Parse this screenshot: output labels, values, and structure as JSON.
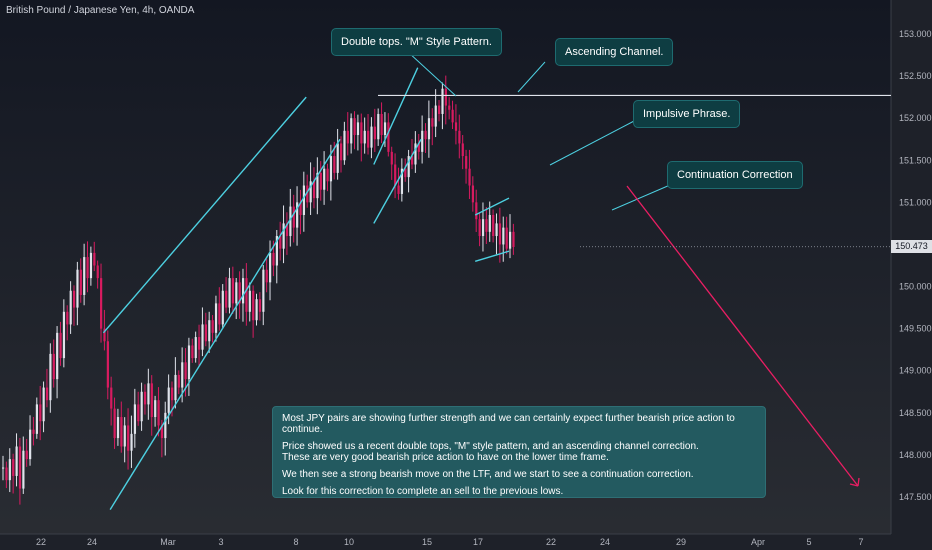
{
  "symbol_title": "British Pound / Japanese Yen, 4h, OANDA",
  "last_price": "150.473",
  "colors": {
    "bull": "#e0e3eb",
    "bear": "#d81b60",
    "channel": "#4dd0e1",
    "projection": "#e91e63",
    "callout_bg": "#0e3d42",
    "note_bg": "#235a60"
  },
  "callouts": {
    "double_top": "Double tops. \"M\" Style Pattern.",
    "ascending_channel": "Ascending Channel.",
    "impulsive": "Impulsive Phrase.",
    "continuation": "Continuation Correction"
  },
  "note": [
    "Most JPY pairs are showing further strength and we can certainly expect further bearish price action to continue.",
    "Price showed us a recent double tops, \"M\" style pattern, and an ascending channel correction.\nThese are very good bearish price action to have on the lower time frame.",
    "We then see a strong bearish move on the LTF, and we start to see a continuation correction.",
    "Look for this correction to complete an sell to the previous lows."
  ],
  "chart_data": {
    "type": "candlestick",
    "instrument": "GBPJPY",
    "timeframe": "4h",
    "x_ticks": [
      "22",
      "24",
      "Mar",
      "3",
      "8",
      "10",
      "15",
      "17",
      "22",
      "24",
      "29",
      "Apr",
      "5",
      "7"
    ],
    "y_ticks": [
      "153.000",
      "152.500",
      "152.000",
      "151.500",
      "151.000",
      "150.500",
      "150.000",
      "149.500",
      "149.000",
      "148.500",
      "148.000",
      "147.500"
    ],
    "ylim": [
      147.3,
      153.3
    ],
    "last_price": 150.473,
    "resistance_level": 152.27,
    "closes_first": 147.85,
    "closes": [
      147.85,
      147.7,
      147.95,
      147.75,
      148.1,
      147.6,
      148.05,
      147.95,
      148.3,
      148.25,
      148.6,
      148.4,
      148.8,
      148.65,
      149.2,
      148.9,
      149.45,
      149.15,
      149.7,
      149.55,
      149.95,
      149.75,
      150.2,
      149.9,
      150.35,
      150.1,
      150.4,
      150.25,
      150.1,
      149.5,
      149.35,
      148.8,
      148.55,
      148.2,
      148.45,
      148.1,
      148.35,
      148.05,
      148.25,
      148.6,
      148.4,
      148.75,
      148.6,
      148.85,
      148.45,
      148.65,
      148.35,
      148.2,
      148.5,
      148.8,
      148.65,
      148.95,
      148.8,
      149.1,
      148.9,
      149.3,
      149.15,
      149.4,
      149.25,
      149.55,
      149.35,
      149.6,
      149.45,
      149.8,
      149.55,
      149.95,
      149.75,
      150.1,
      149.8,
      150.05,
      149.8,
      150.1,
      149.7,
      149.95,
      149.6,
      149.85,
      149.7,
      150.2,
      150.05,
      150.4,
      150.25,
      150.6,
      150.45,
      150.75,
      150.6,
      150.95,
      150.7,
      151.0,
      150.85,
      151.2,
      151.0,
      151.25,
      151.05,
      151.35,
      151.15,
      151.4,
      151.25,
      151.55,
      151.35,
      151.7,
      151.5,
      151.85,
      151.7,
      152.0,
      151.8,
      151.95,
      151.7,
      151.85,
      151.65,
      151.9,
      151.75,
      152.05,
      151.8,
      151.95,
      151.6,
      151.45,
      151.2,
      151.1,
      151.4,
      151.3,
      151.55,
      151.45,
      151.7,
      151.6,
      151.85,
      151.75,
      152.0,
      151.9,
      152.15,
      152.05,
      152.35,
      152.15,
      152.1,
      151.95,
      151.85,
      151.7,
      151.55,
      151.4,
      151.2,
      151.0,
      150.8,
      150.6,
      150.8,
      150.65,
      150.85,
      150.6,
      150.75,
      150.5,
      150.7,
      150.45,
      150.65,
      150.47
    ],
    "annotations": {
      "ascending_channel_1": {
        "from": {
          "bar": 30,
          "price": 149.45
        },
        "to": {
          "bar": 90,
          "price": 152.25
        }
      },
      "ascending_channel_1_lower": {
        "from": {
          "bar": 32,
          "price": 147.35
        },
        "to": {
          "bar": 100,
          "price": 151.75
        }
      },
      "ascending_channel_2": {
        "from": {
          "bar": 110,
          "price": 150.75
        },
        "to": {
          "bar": 124,
          "price": 151.75
        }
      },
      "ascending_channel_2_upper": {
        "from": {
          "bar": 110,
          "price": 151.45
        },
        "to": {
          "bar": 123,
          "price": 152.6
        }
      },
      "continuation_upper": {
        "from": {
          "bar": 140,
          "price": 150.85
        },
        "to": {
          "bar": 150,
          "price": 151.05
        }
      },
      "continuation_lower": {
        "from": {
          "bar": 140,
          "price": 150.3
        },
        "to": {
          "bar": 150,
          "price": 150.42
        }
      },
      "projection": {
        "from": {
          "bar": 159,
          "price": 151.2
        },
        "to": {
          "bar": 212,
          "price": 147.6
        }
      }
    }
  }
}
